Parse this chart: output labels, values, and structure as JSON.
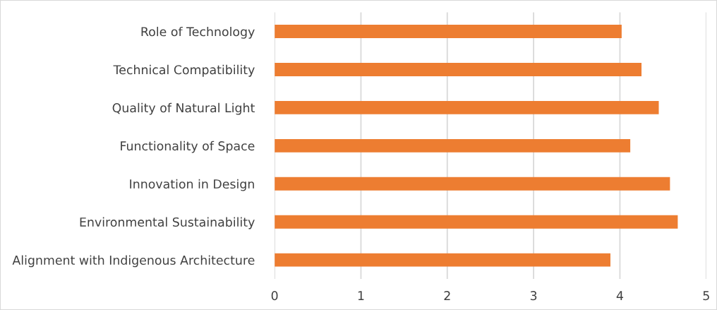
{
  "chart_data": {
    "type": "bar",
    "orientation": "horizontal",
    "categories": [
      "Role of Technology",
      "Technical Compatibility",
      "Quality of Natural Light",
      "Functionality of Space",
      "Innovation in Design",
      "Environmental Sustainability",
      "Alignment with Indigenous Architecture"
    ],
    "values": [
      4.02,
      4.25,
      4.45,
      4.12,
      4.58,
      4.67,
      3.89
    ],
    "color": "#ed7d31",
    "xlim": [
      0,
      5
    ],
    "xticks": [
      0,
      1,
      2,
      3,
      4,
      5
    ],
    "grid": "x"
  }
}
